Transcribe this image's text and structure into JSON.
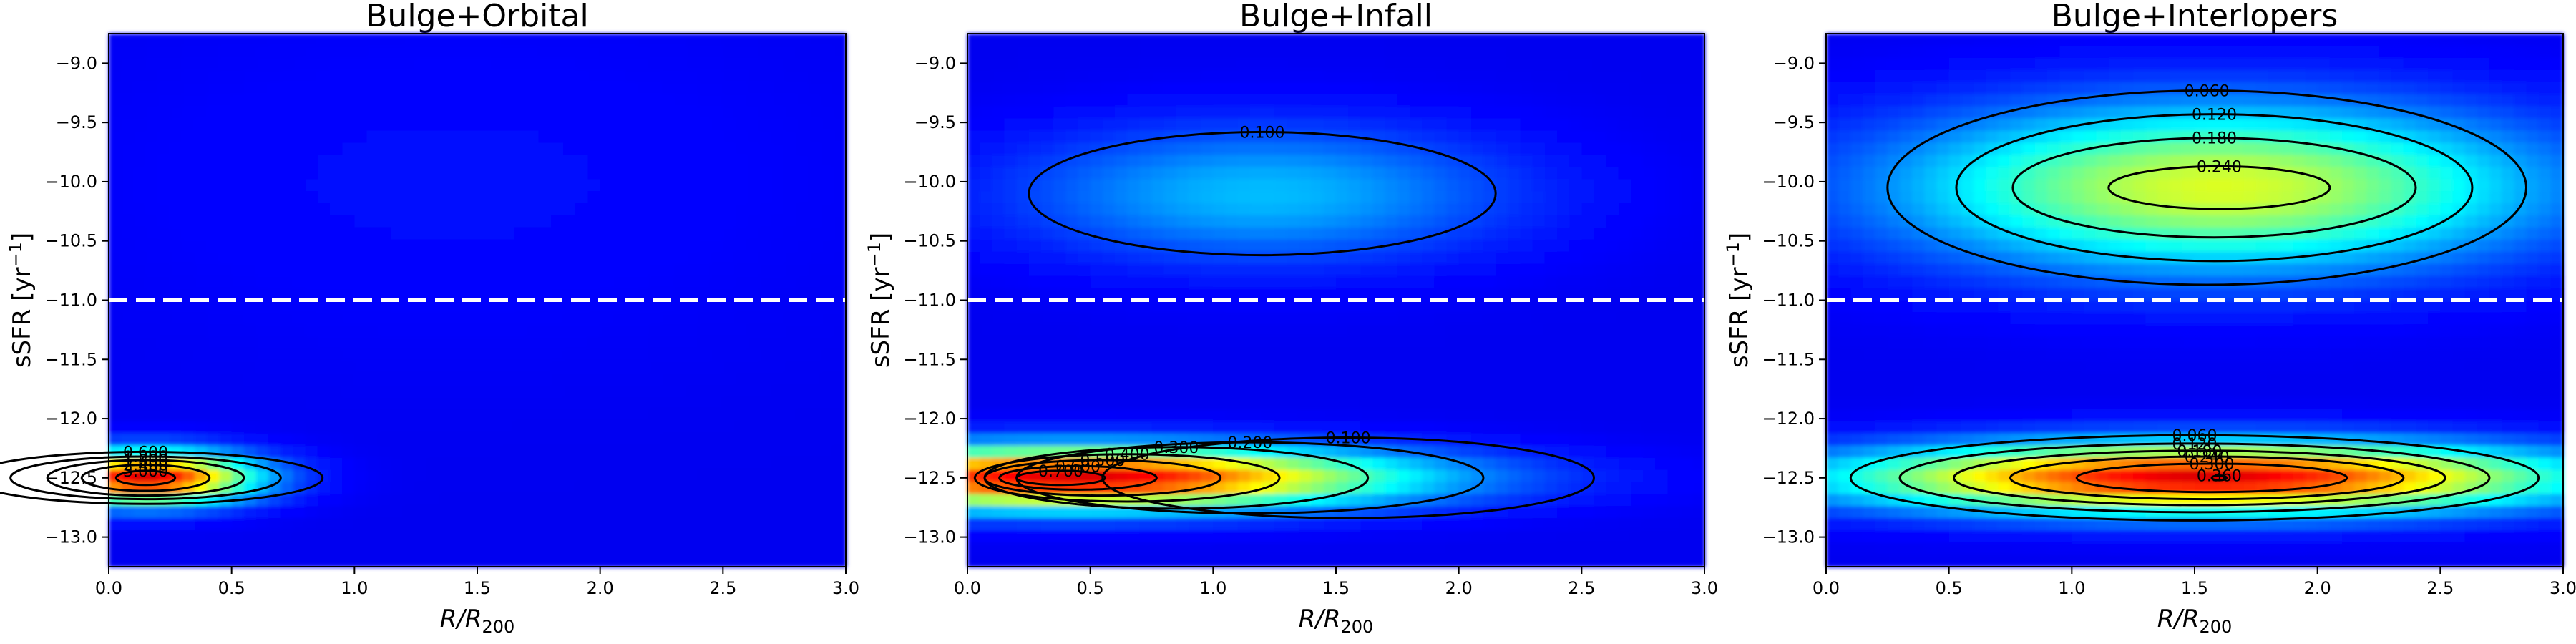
{
  "chart_data": [
    {
      "type": "heatmap",
      "title": "Bulge+Orbital",
      "xlabel_main": "R/R",
      "xlabel_sub": "200",
      "ylabel_main": "sSFR [yr",
      "ylabel_sup": "−1",
      "ylabel_end": "]",
      "xlim": [
        0.0,
        3.0
      ],
      "ylim": [
        -13.25,
        -8.75
      ],
      "xticks": [
        "0.0",
        "0.5",
        "1.0",
        "1.5",
        "2.0",
        "2.5",
        "3.0"
      ],
      "yticks": [
        "−9.0",
        "−9.5",
        "−10.0",
        "−10.5",
        "−11.0",
        "−11.5",
        "−12.0",
        "−12.5",
        "−13.0"
      ],
      "threshold_line": {
        "y": -11.0,
        "style": "dashed",
        "color": "#ffffff"
      },
      "colormap": "jet",
      "grid": false,
      "components": [
        {
          "x": 0.15,
          "y": -12.5,
          "sx": 0.3,
          "sy": 0.15,
          "amplitude": 1.0
        },
        {
          "x": 1.4,
          "y": -10.0,
          "sx": 1.2,
          "sy": 1.0,
          "amplitude": 0.03
        }
      ],
      "contours": [
        {
          "x": 0.15,
          "y": -12.5,
          "rx": 0.72,
          "ry": 0.22,
          "label": "0.600"
        },
        {
          "x": 0.15,
          "y": -12.5,
          "rx": 0.55,
          "ry": 0.18,
          "label": "1.200"
        },
        {
          "x": 0.15,
          "y": -12.5,
          "rx": 0.4,
          "ry": 0.15,
          "label": "1.800"
        },
        {
          "x": 0.15,
          "y": -12.5,
          "rx": 0.26,
          "ry": 0.11,
          "label": "2.400"
        },
        {
          "x": 0.15,
          "y": -12.5,
          "rx": 0.12,
          "ry": 0.06,
          "label": "3.000"
        }
      ]
    },
    {
      "type": "heatmap",
      "title": "Bulge+Infall",
      "xlabel_main": "R/R",
      "xlabel_sub": "200",
      "ylabel_main": "sSFR [yr",
      "ylabel_sup": "−1",
      "ylabel_end": "]",
      "xlim": [
        0.0,
        3.0
      ],
      "ylim": [
        -13.25,
        -8.75
      ],
      "xticks": [
        "0.0",
        "0.5",
        "1.0",
        "1.5",
        "2.0",
        "2.5",
        "3.0"
      ],
      "yticks": [
        "−9.0",
        "−9.5",
        "−10.0",
        "−10.5",
        "−11.0",
        "−11.5",
        "−12.0",
        "−12.5",
        "−13.0"
      ],
      "threshold_line": {
        "y": -11.0,
        "style": "dashed",
        "color": "#ffffff"
      },
      "colormap": "jet",
      "grid": false,
      "components": [
        {
          "x": 0.45,
          "y": -12.5,
          "sx": 0.9,
          "sy": 0.18,
          "amplitude": 1.0
        },
        {
          "x": 1.2,
          "y": -10.1,
          "sx": 0.7,
          "sy": 0.4,
          "amplitude": 0.25
        }
      ],
      "contours": [
        {
          "x": 1.55,
          "y": -12.5,
          "rx": 1.0,
          "ry": 0.34,
          "label": "0.100"
        },
        {
          "x": 1.15,
          "y": -12.5,
          "rx": 0.95,
          "ry": 0.3,
          "label": "0.200"
        },
        {
          "x": 0.85,
          "y": -12.5,
          "rx": 0.78,
          "ry": 0.26,
          "label": "0.300"
        },
        {
          "x": 0.65,
          "y": -12.5,
          "rx": 0.62,
          "ry": 0.2,
          "label": "0.400"
        },
        {
          "x": 0.55,
          "y": -12.5,
          "rx": 0.48,
          "ry": 0.15,
          "label": "0.500"
        },
        {
          "x": 0.45,
          "y": -12.5,
          "rx": 0.32,
          "ry": 0.1,
          "label": "0.600"
        },
        {
          "x": 0.38,
          "y": -12.5,
          "rx": 0.18,
          "ry": 0.06,
          "label": "0.700"
        },
        {
          "x": 1.2,
          "y": -10.1,
          "rx": 0.95,
          "ry": 0.52,
          "label": "0.100"
        }
      ]
    },
    {
      "type": "heatmap",
      "title": "Bulge+Interlopers",
      "xlabel_main": "R/R",
      "xlabel_sub": "200",
      "ylabel_main": "sSFR [yr",
      "ylabel_sup": "−1",
      "ylabel_end": "]",
      "xlim": [
        0.0,
        3.0
      ],
      "ylim": [
        -13.25,
        -8.75
      ],
      "xticks": [
        "0.0",
        "0.5",
        "1.0",
        "1.5",
        "2.0",
        "2.5",
        "3.0"
      ],
      "yticks": [
        "−9.0",
        "−9.5",
        "−10.0",
        "−10.5",
        "−11.0",
        "−11.5",
        "−12.0",
        "−12.5",
        "−13.0"
      ],
      "threshold_line": {
        "y": -11.0,
        "style": "dashed",
        "color": "#ffffff"
      },
      "colormap": "jet",
      "grid": false,
      "components": [
        {
          "x": 1.55,
          "y": -12.5,
          "sx": 1.0,
          "sy": 0.2,
          "amplitude": 1.0
        },
        {
          "x": 1.6,
          "y": -10.05,
          "sx": 0.9,
          "sy": 0.48,
          "amplitude": 0.6
        }
      ],
      "contours": [
        {
          "x": 1.5,
          "y": -12.5,
          "rx": 1.4,
          "ry": 0.36,
          "label": "0.060"
        },
        {
          "x": 1.5,
          "y": -12.5,
          "rx": 1.2,
          "ry": 0.29,
          "label": "0.120"
        },
        {
          "x": 1.52,
          "y": -12.5,
          "rx": 1.0,
          "ry": 0.23,
          "label": "0.180"
        },
        {
          "x": 1.55,
          "y": -12.5,
          "rx": 0.8,
          "ry": 0.18,
          "label": "0.240"
        },
        {
          "x": 1.57,
          "y": -12.5,
          "rx": 0.55,
          "ry": 0.12,
          "label": "0.300"
        },
        {
          "x": 1.6,
          "y": -12.5,
          "rx": 0.03,
          "ry": 0.02,
          "label": "0.360"
        },
        {
          "x": 1.55,
          "y": -10.05,
          "rx": 1.3,
          "ry": 0.82,
          "label": "0.060"
        },
        {
          "x": 1.58,
          "y": -10.05,
          "rx": 1.05,
          "ry": 0.62,
          "label": "0.120"
        },
        {
          "x": 1.58,
          "y": -10.05,
          "rx": 0.82,
          "ry": 0.42,
          "label": "0.180"
        },
        {
          "x": 1.6,
          "y": -10.05,
          "rx": 0.45,
          "ry": 0.18,
          "label": "0.240"
        }
      ]
    }
  ]
}
